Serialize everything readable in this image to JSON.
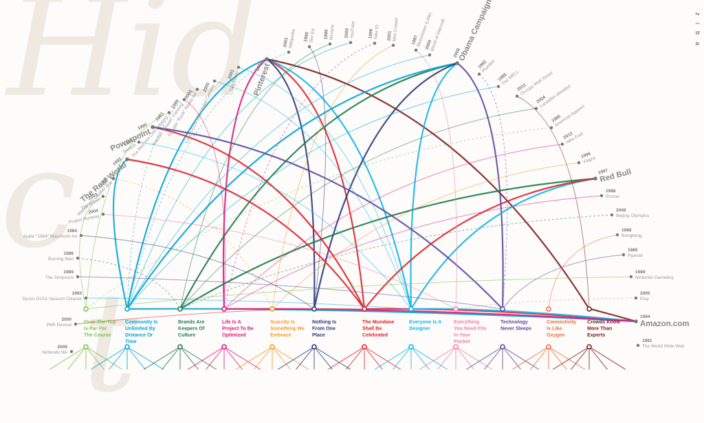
{
  "brand": "z i b a",
  "watermark": [
    "Hid",
    "c",
    "t"
  ],
  "themes": [
    {
      "label": "Over-The-Top Is Par For The Course",
      "color": "#7cc24a"
    },
    {
      "label": "Community Is Unlimited By Distance Or Time",
      "color": "#00a5d6"
    },
    {
      "label": "Brands Are Keepers Of Culture",
      "color": "#1f7a4f"
    },
    {
      "label": "Life Is A Project To Be Optimized",
      "color": "#e0187b"
    },
    {
      "label": "Scarcity Is Something We Embrace",
      "color": "#f39a2b"
    },
    {
      "label": "Nothing Is From One Place",
      "color": "#2a3a7a"
    },
    {
      "label": "The Mundane Shall Be Celebrated",
      "color": "#e0202a"
    },
    {
      "label": "Everyone Is A Designer",
      "color": "#12b6e6"
    },
    {
      "label": "Everything You Need Fits In Your Pocket",
      "color": "#f07fa2"
    },
    {
      "label": "Technology Never Sleeps",
      "color": "#5a4aa0"
    },
    {
      "label": "Connectivity Is Like Oxygen",
      "color": "#f06a3a"
    },
    {
      "label": "Crowds Know More Than Experts",
      "color": "#7a1f1f"
    }
  ],
  "events": [
    {
      "year": "2000",
      "name": "PBR Revival",
      "big": false
    },
    {
      "year": "1993",
      "name": "Dyson DC01 Vacuum Cleaner",
      "big": false
    },
    {
      "year": "1989",
      "name": "The Simpsons",
      "big": false
    },
    {
      "year": "1986",
      "name": "Burning Man",
      "big": false
    },
    {
      "year": "1984",
      "name": "Apple \"1984\" Macintosh Ad",
      "big": false
    },
    {
      "year": "2004",
      "name": "Project Runway",
      "big": false
    },
    {
      "year": "2003",
      "name": "The Onion",
      "big": false
    },
    {
      "year": "1995",
      "name": "Madonna's Gaultier Bra",
      "big": false
    },
    {
      "year": "1992",
      "name": "The Real World",
      "big": true
    },
    {
      "year": "1983",
      "name": "Swatch",
      "big": false
    },
    {
      "year": "1990",
      "name": "Powerpoint",
      "big": true
    },
    {
      "year": "1981",
      "name": "The Red Hot Chili Peppers",
      "big": false
    },
    {
      "year": "1999",
      "name": "Napster \"Shawn\" Fanning",
      "big": false
    },
    {
      "year": "2000",
      "name": "Napster \"Rock\" Remix Ad",
      "big": false
    },
    {
      "year": "2005",
      "name": "Canon EOS 20D Digital Camera",
      "big": false
    },
    {
      "year": "2001",
      "name": "Get Fuzzy",
      "big": false
    },
    {
      "year": "2010",
      "name": "Pinterest",
      "big": true
    },
    {
      "year": "2001",
      "name": "Wikipedia",
      "big": false
    },
    {
      "year": "1995",
      "name": "Sex Ed",
      "big": false
    },
    {
      "year": "1989",
      "name": "Nirvana",
      "big": false
    },
    {
      "year": "2005",
      "name": "YouTube",
      "big": false
    },
    {
      "year": "1999",
      "name": "Nike ID",
      "big": false
    },
    {
      "year": "2001",
      "name": "Mini Cooper",
      "big": false
    },
    {
      "year": "1997",
      "name": "Bluestream (Little)",
      "big": false
    },
    {
      "year": "2004",
      "name": "World of Warcraft",
      "big": false
    },
    {
      "year": "2008",
      "name": "Obama Campaign",
      "big": true
    },
    {
      "year": "1992",
      "name": "Plumber",
      "big": false
    },
    {
      "year": "1985",
      "name": "The WELL",
      "big": false
    },
    {
      "year": "2011",
      "name": "Occupy Wall Street",
      "big": false
    },
    {
      "year": "2004",
      "name": "Lucasfilm Wedded",
      "big": false
    },
    {
      "year": "1985",
      "name": "American Apparel",
      "big": false
    },
    {
      "year": "2012",
      "name": "Nike Fuel",
      "big": false
    },
    {
      "year": "1995",
      "name": "Viagra",
      "big": false
    },
    {
      "year": "1997",
      "name": "Red Bull",
      "big": true
    },
    {
      "year": "1988",
      "name": "Prozac",
      "big": false
    },
    {
      "year": "2008",
      "name": "Beijing Olympics",
      "big": false
    },
    {
      "year": "1988",
      "name": "Bongbong",
      "big": false
    },
    {
      "year": "1985",
      "name": "Ryanair",
      "big": false
    },
    {
      "year": "1989",
      "name": "Nintendo Gameboy",
      "big": false
    },
    {
      "year": "2005",
      "name": "Etsy",
      "big": false
    },
    {
      "year": "1994",
      "name": "Amazon.com",
      "big": true
    },
    {
      "year": "1991",
      "name": "The World Wide Web",
      "big": false
    },
    {
      "year": "2006",
      "name": "Nintendo Wii",
      "big": false
    }
  ]
}
